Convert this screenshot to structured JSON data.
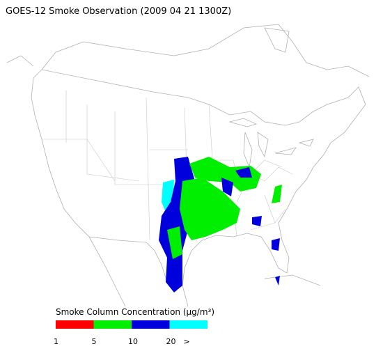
{
  "title": "GOES-12 Smoke Observation (2009 04 21  1300Z)",
  "legend": {
    "label": "Smoke Column Concentration (µg/m³)",
    "bins": [
      {
        "color": "#ff0000"
      },
      {
        "color": "#00ee00"
      },
      {
        "color": "#0000dd"
      },
      {
        "color": "#00ffff"
      }
    ],
    "ticks": [
      "1",
      "5",
      "10",
      "20",
      ">"
    ]
  }
}
